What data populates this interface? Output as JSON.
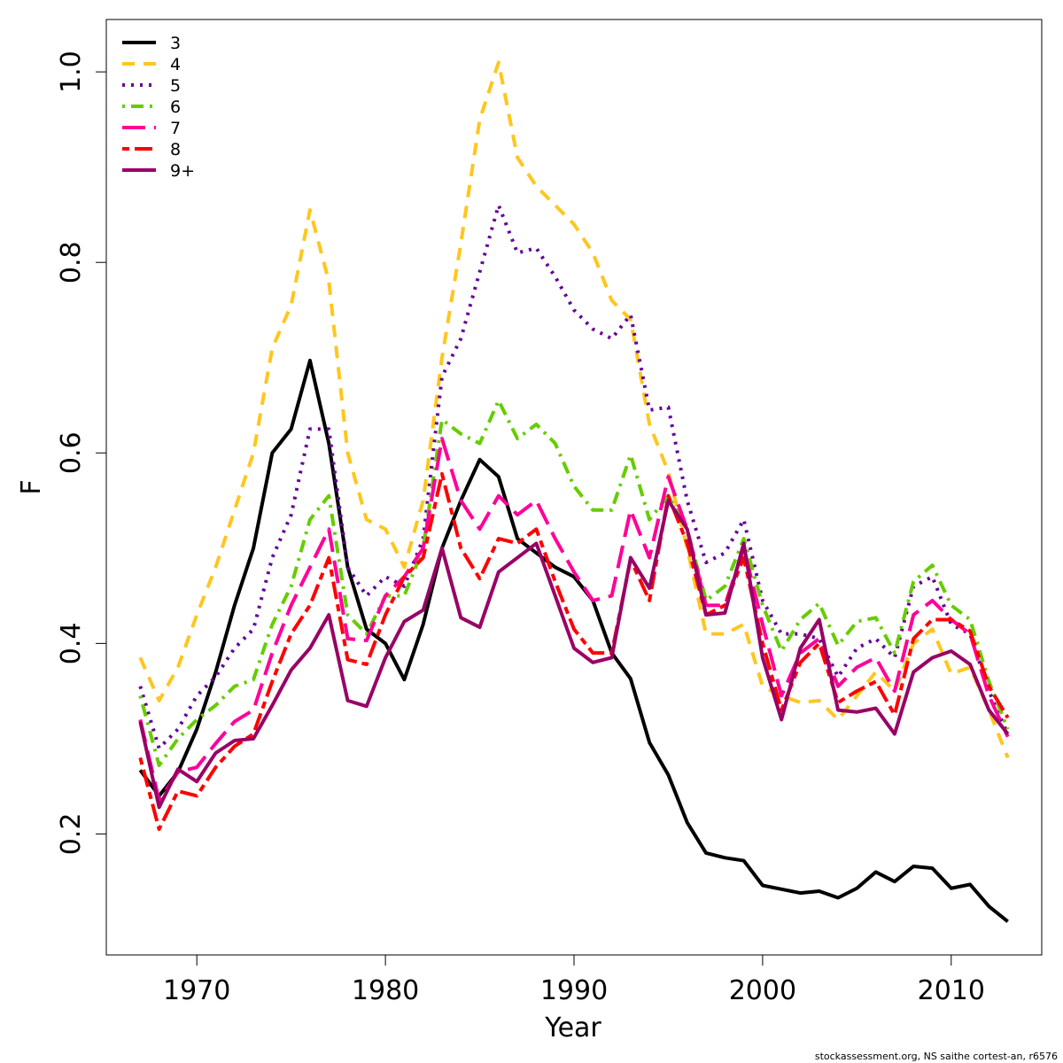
{
  "chart_data": {
    "type": "line",
    "xlabel": "Year",
    "ylabel": "F",
    "note": "stockassessment.org, NS saithe cortest-an, r6576",
    "x": [
      1967,
      1968,
      1969,
      1970,
      1971,
      1972,
      1973,
      1974,
      1975,
      1976,
      1977,
      1978,
      1979,
      1980,
      1981,
      1982,
      1983,
      1984,
      1985,
      1986,
      1987,
      1988,
      1989,
      1990,
      1991,
      1992,
      1993,
      1994,
      1995,
      1996,
      1997,
      1998,
      1999,
      2000,
      2001,
      2002,
      2003,
      2004,
      2005,
      2006,
      2007,
      2008,
      2009,
      2010,
      2011,
      2012,
      2013
    ],
    "xlim": [
      1965.2,
      2014.8
    ],
    "xticks": [
      1970,
      1980,
      1990,
      2000,
      2010
    ],
    "ylim": [
      0.073,
      1.055
    ],
    "yticks": [
      0.2,
      0.4,
      0.6,
      0.8,
      {
        "value": 1,
        "label": "1.0"
      }
    ],
    "legend": "top-left",
    "series": [
      {
        "name": "3",
        "color": "#000000",
        "dash": "solid",
        "values": [
          0.267,
          0.24,
          0.265,
          0.31,
          0.37,
          0.44,
          0.5,
          0.6,
          0.625,
          0.697,
          0.61,
          0.48,
          0.415,
          0.4,
          0.362,
          0.42,
          0.5,
          0.55,
          0.593,
          0.575,
          0.51,
          0.495,
          0.48,
          0.47,
          0.445,
          0.39,
          0.363,
          0.296,
          0.262,
          0.212,
          0.18,
          0.175,
          0.172,
          0.146,
          0.142,
          0.138,
          0.14,
          0.133,
          0.143,
          0.16,
          0.15,
          0.166,
          0.164,
          0.143,
          0.147,
          0.124,
          0.108
        ]
      },
      {
        "name": "4",
        "color": "#ffc61e",
        "dash": "dashed",
        "values": [
          0.385,
          0.34,
          0.375,
          0.43,
          0.48,
          0.54,
          0.6,
          0.71,
          0.755,
          0.855,
          0.78,
          0.6,
          0.53,
          0.52,
          0.48,
          0.55,
          0.7,
          0.82,
          0.95,
          1.01,
          0.91,
          0.88,
          0.86,
          0.84,
          0.81,
          0.76,
          0.74,
          0.63,
          0.58,
          0.5,
          0.41,
          0.41,
          0.42,
          0.355,
          0.345,
          0.338,
          0.34,
          0.32,
          0.345,
          0.37,
          0.35,
          0.4,
          0.415,
          0.368,
          0.375,
          0.33,
          0.28
        ]
      },
      {
        "name": "5",
        "color": "#660099",
        "dash": "dotted",
        "values": [
          0.355,
          0.29,
          0.31,
          0.345,
          0.365,
          0.395,
          0.415,
          0.49,
          0.535,
          0.625,
          0.625,
          0.48,
          0.45,
          0.47,
          0.46,
          0.51,
          0.68,
          0.72,
          0.79,
          0.86,
          0.81,
          0.815,
          0.785,
          0.75,
          0.73,
          0.72,
          0.745,
          0.645,
          0.648,
          0.55,
          0.485,
          0.495,
          0.53,
          0.445,
          0.41,
          0.41,
          0.405,
          0.365,
          0.395,
          0.405,
          0.385,
          0.46,
          0.47,
          0.42,
          0.41,
          0.35,
          0.305
        ]
      },
      {
        "name": "6",
        "color": "#66cc00",
        "dash": "dotdash",
        "values": [
          0.345,
          0.272,
          0.3,
          0.32,
          0.335,
          0.355,
          0.362,
          0.42,
          0.46,
          0.53,
          0.555,
          0.43,
          0.41,
          0.45,
          0.45,
          0.5,
          0.635,
          0.62,
          0.61,
          0.655,
          0.615,
          0.63,
          0.61,
          0.565,
          0.54,
          0.54,
          0.598,
          0.53,
          0.555,
          0.52,
          0.445,
          0.46,
          0.51,
          0.44,
          0.392,
          0.425,
          0.442,
          0.398,
          0.423,
          0.427,
          0.39,
          0.465,
          0.482,
          0.44,
          0.425,
          0.36,
          0.31
        ]
      },
      {
        "name": "7",
        "color": "#ff0099",
        "dash": "longdash",
        "values": [
          0.32,
          0.235,
          0.265,
          0.27,
          0.295,
          0.318,
          0.33,
          0.39,
          0.44,
          0.48,
          0.52,
          0.405,
          0.403,
          0.45,
          0.47,
          0.5,
          0.615,
          0.55,
          0.52,
          0.555,
          0.535,
          0.55,
          0.51,
          0.475,
          0.445,
          0.45,
          0.54,
          0.49,
          0.575,
          0.52,
          0.44,
          0.44,
          0.5,
          0.42,
          0.345,
          0.39,
          0.405,
          0.355,
          0.375,
          0.385,
          0.35,
          0.43,
          0.445,
          0.425,
          0.41,
          0.345,
          0.302
        ]
      },
      {
        "name": "8",
        "color": "#ff0000",
        "dash": "twodash",
        "values": [
          0.28,
          0.205,
          0.245,
          0.24,
          0.27,
          0.292,
          0.305,
          0.36,
          0.41,
          0.44,
          0.49,
          0.383,
          0.378,
          0.43,
          0.47,
          0.49,
          0.578,
          0.5,
          0.468,
          0.51,
          0.505,
          0.52,
          0.465,
          0.415,
          0.39,
          0.39,
          0.488,
          0.445,
          0.555,
          0.505,
          0.43,
          0.44,
          0.49,
          0.4,
          0.33,
          0.38,
          0.4,
          0.338,
          0.35,
          0.36,
          0.325,
          0.405,
          0.425,
          0.425,
          0.413,
          0.355,
          0.322
        ]
      },
      {
        "name": "9+",
        "color": "#990066",
        "dash": "solid",
        "values": [
          0.318,
          0.228,
          0.268,
          0.255,
          0.285,
          0.298,
          0.3,
          0.335,
          0.372,
          0.395,
          0.43,
          0.34,
          0.334,
          0.385,
          0.423,
          0.435,
          0.5,
          0.427,
          0.417,
          0.475,
          0.49,
          0.505,
          0.45,
          0.395,
          0.38,
          0.385,
          0.49,
          0.458,
          0.55,
          0.52,
          0.43,
          0.432,
          0.505,
          0.385,
          0.32,
          0.395,
          0.425,
          0.33,
          0.328,
          0.332,
          0.305,
          0.37,
          0.385,
          0.392,
          0.378,
          0.33,
          0.305
        ]
      }
    ]
  }
}
